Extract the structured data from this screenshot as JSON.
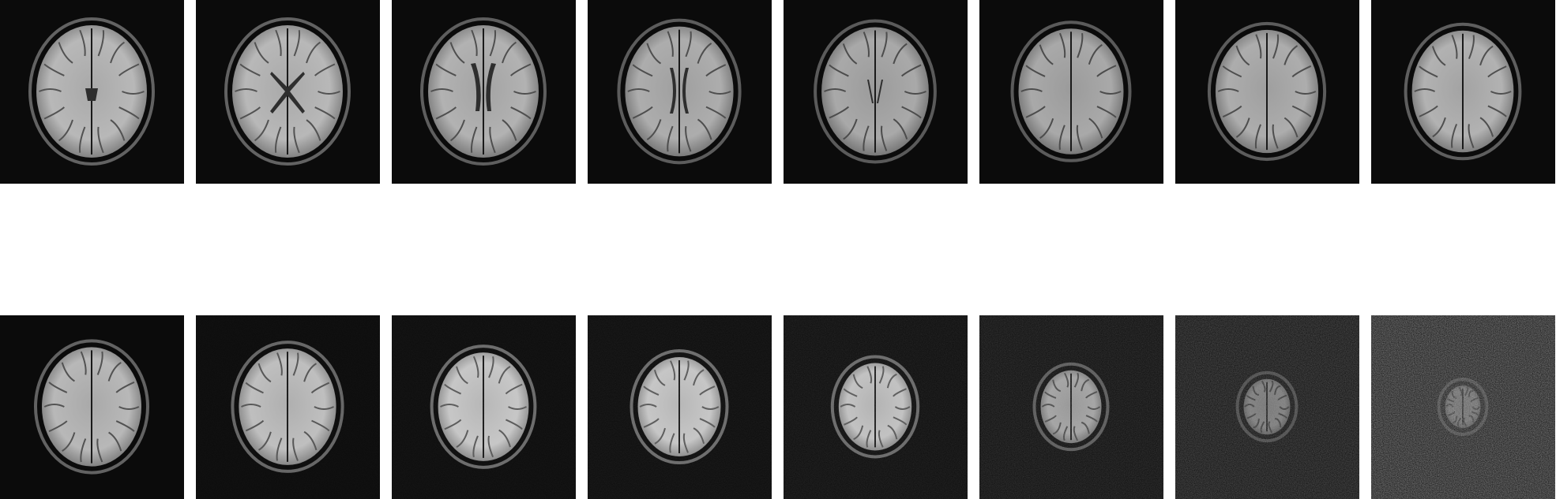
{
  "figure": {
    "background_color": "#ffffff",
    "tile_color": "#0b0b0b"
  },
  "rows": [
    {
      "slices": [
        {
          "slice": 1,
          "icon": "brain-mri-slice-icon",
          "brain_scale": 1.0,
          "ventricles": "posterior",
          "noise": 0.0,
          "brightness": 0.85
        },
        {
          "slice": 2,
          "icon": "brain-mri-slice-icon",
          "brain_scale": 1.0,
          "ventricles": "x-shape",
          "noise": 0.0,
          "brightness": 0.85
        },
        {
          "slice": 3,
          "icon": "brain-mri-slice-icon",
          "brain_scale": 1.0,
          "ventricles": "butterfly",
          "noise": 0.0,
          "brightness": 0.82
        },
        {
          "slice": 4,
          "icon": "brain-mri-slice-icon",
          "brain_scale": 0.98,
          "ventricles": "lateral",
          "noise": 0.0,
          "brightness": 0.8
        },
        {
          "slice": 5,
          "icon": "brain-mri-slice-icon",
          "brain_scale": 0.97,
          "ventricles": "thin",
          "noise": 0.0,
          "brightness": 0.78
        },
        {
          "slice": 6,
          "icon": "brain-mri-slice-icon",
          "brain_scale": 0.95,
          "ventricles": "none",
          "noise": 0.0,
          "brightness": 0.78
        },
        {
          "slice": 7,
          "icon": "brain-mri-slice-icon",
          "brain_scale": 0.93,
          "ventricles": "none",
          "noise": 0.0,
          "brightness": 0.8
        },
        {
          "slice": 8,
          "icon": "brain-mri-slice-icon",
          "brain_scale": 0.92,
          "ventricles": "none",
          "noise": 0.0,
          "brightness": 0.82
        }
      ]
    },
    {
      "slices": [
        {
          "slice": 9,
          "icon": "brain-mri-slice-icon",
          "brain_scale": 0.9,
          "ventricles": "none",
          "noise": 0.0,
          "brightness": 0.85
        },
        {
          "slice": 10,
          "icon": "brain-mri-slice-icon",
          "brain_scale": 0.88,
          "ventricles": "none",
          "noise": 0.05,
          "brightness": 0.88
        },
        {
          "slice": 11,
          "icon": "brain-mri-slice-icon",
          "brain_scale": 0.82,
          "ventricles": "none",
          "noise": 0.08,
          "brightness": 0.92
        },
        {
          "slice": 12,
          "icon": "brain-mri-slice-icon",
          "brain_scale": 0.75,
          "ventricles": "none",
          "noise": 0.12,
          "brightness": 0.92
        },
        {
          "slice": 13,
          "icon": "brain-mri-slice-icon",
          "brain_scale": 0.66,
          "ventricles": "none",
          "noise": 0.18,
          "brightness": 0.9
        },
        {
          "slice": 14,
          "icon": "brain-mri-slice-icon",
          "brain_scale": 0.55,
          "ventricles": "none",
          "noise": 0.28,
          "brightness": 0.75
        },
        {
          "slice": 15,
          "icon": "brain-mri-slice-icon",
          "brain_scale": 0.42,
          "ventricles": "none",
          "noise": 0.45,
          "brightness": 0.55
        },
        {
          "slice": 16,
          "icon": "brain-mri-slice-icon",
          "brain_scale": 0.32,
          "ventricles": "none",
          "noise": 0.75,
          "brightness": 0.45
        }
      ]
    }
  ]
}
